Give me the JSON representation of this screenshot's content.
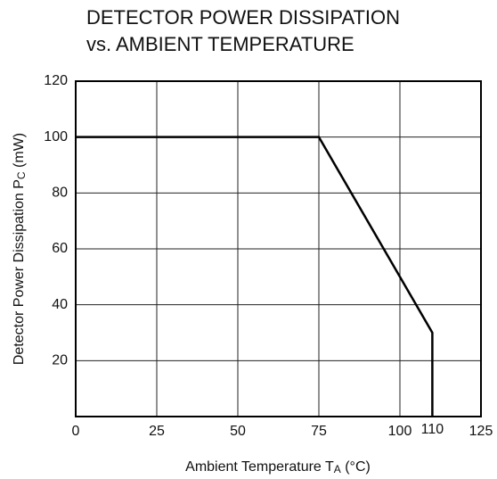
{
  "chart_data": {
    "type": "line",
    "title": [
      "DETECTOR POWER DISSIPATION",
      "vs. AMBIENT TEMPERATURE"
    ],
    "x_label": [
      "Ambient Temperature T",
      "A",
      " (°C)"
    ],
    "y_label": [
      "Detector Power Dissipation P",
      "C",
      " (mW)"
    ],
    "x": [
      0,
      75,
      110,
      110
    ],
    "series": [
      {
        "color": "#000000",
        "values": [
          100,
          100,
          30,
          0
        ]
      }
    ],
    "xlim": [
      0,
      125
    ],
    "xticks": [
      0,
      25,
      50,
      75,
      100,
      125
    ],
    "ylim": [
      0,
      120
    ],
    "yticks": [
      20,
      40,
      60,
      80,
      100,
      120
    ],
    "annotations": [
      {
        "x": 110,
        "text": "110"
      }
    ],
    "grid": true
  }
}
